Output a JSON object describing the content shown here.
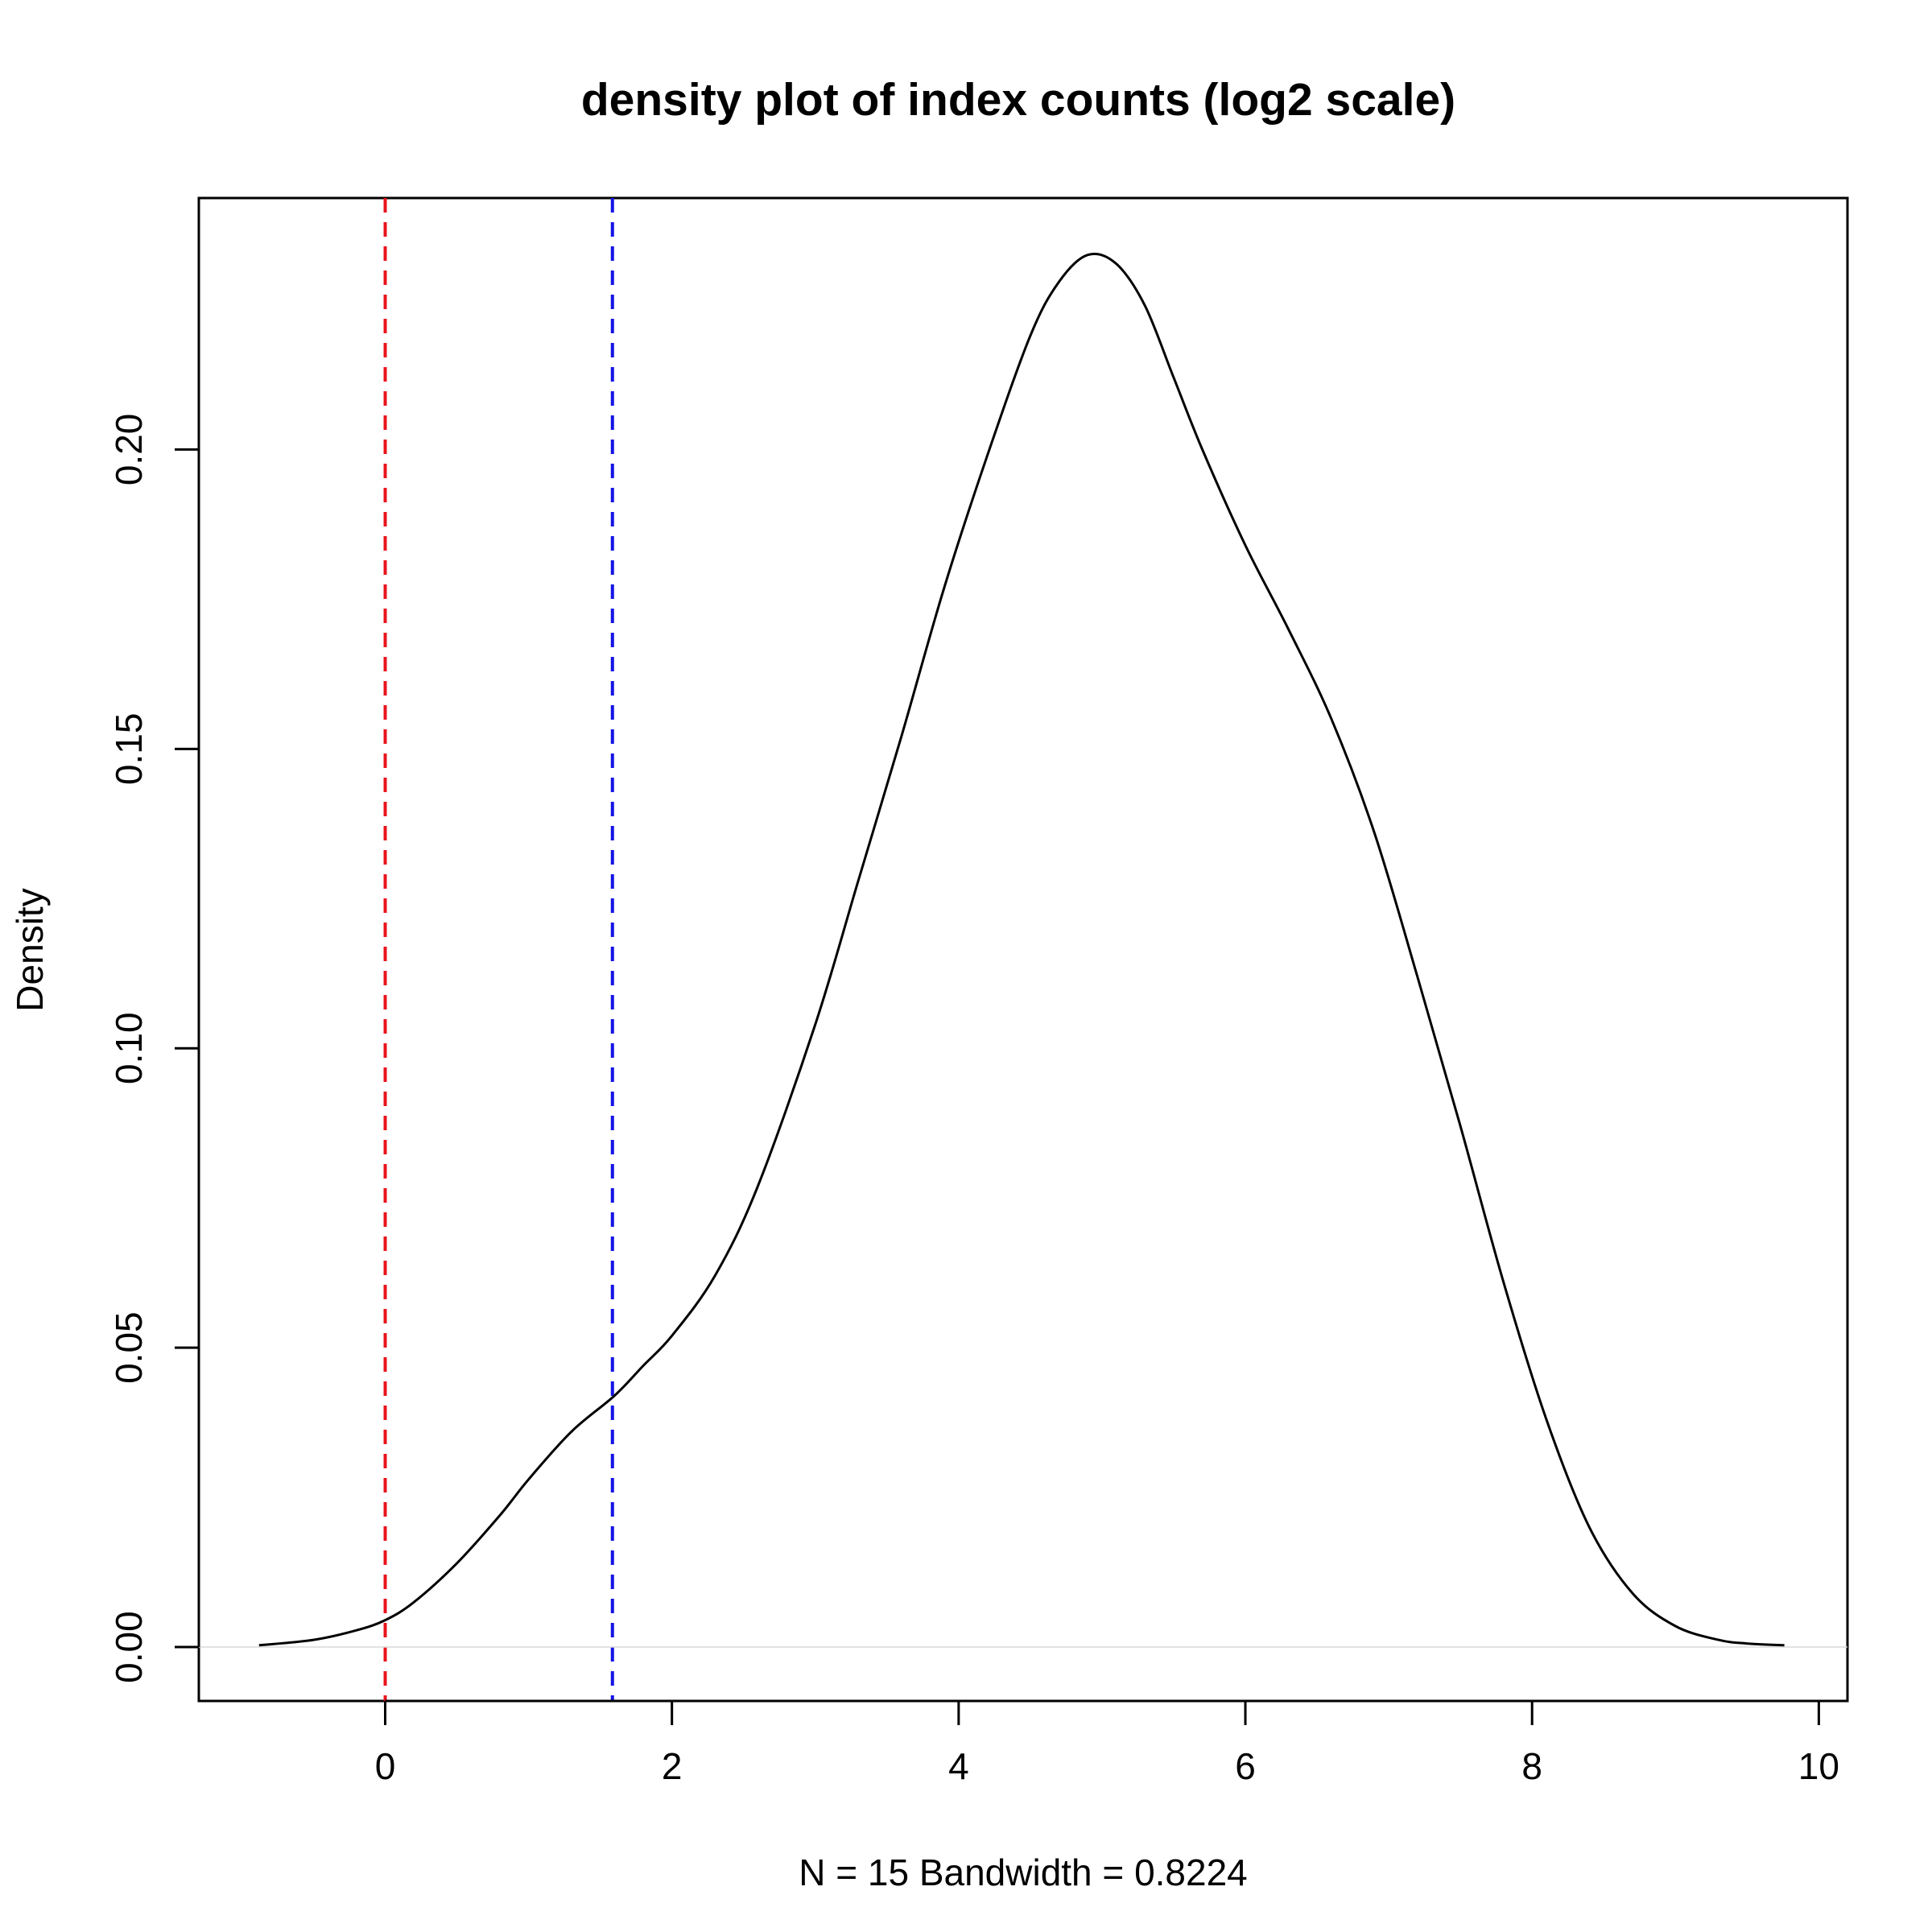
{
  "chart_data": {
    "type": "line",
    "title": "density plot of index counts (log2 scale)",
    "xlabel": "N = 15   Bandwidth = 0.8224",
    "ylabel": "Density",
    "xlim": [
      -1.3,
      10.2
    ],
    "ylim": [
      -0.009,
      0.242
    ],
    "x_ticks": [
      0,
      2,
      4,
      6,
      8,
      10
    ],
    "x_tick_labels": [
      "0",
      "2",
      "4",
      "6",
      "8",
      "10"
    ],
    "y_ticks": [
      0.0,
      0.05,
      0.1,
      0.15,
      0.2
    ],
    "y_tick_labels": [
      "0.00",
      "0.05",
      "0.10",
      "0.15",
      "0.20"
    ],
    "grid": false,
    "legend": "none",
    "reference_lines": [
      {
        "x": 0,
        "color": "#e8141c",
        "style": "dashed"
      },
      {
        "x": 1.585,
        "color": "#1414e6",
        "style": "dashed"
      }
    ],
    "baseline": {
      "y": 0,
      "color": "#d9d9d9"
    },
    "series": [
      {
        "color": "#000000",
        "x": [
          -0.88,
          -0.5,
          -0.2,
          0.0,
          0.2,
          0.5,
          0.8,
          1.0,
          1.3,
          1.6,
          1.8,
          2.0,
          2.3,
          2.6,
          3.0,
          3.3,
          3.6,
          3.9,
          4.2,
          4.5,
          4.7,
          4.9,
          5.1,
          5.3,
          5.5,
          5.7,
          6.0,
          6.3,
          6.6,
          6.9,
          7.2,
          7.5,
          7.8,
          8.1,
          8.4,
          8.7,
          9.0,
          9.3,
          9.5,
          9.76
        ],
        "y": [
          0.0003,
          0.0012,
          0.0028,
          0.0045,
          0.0075,
          0.014,
          0.022,
          0.028,
          0.036,
          0.042,
          0.047,
          0.052,
          0.062,
          0.077,
          0.104,
          0.128,
          0.152,
          0.177,
          0.199,
          0.219,
          0.228,
          0.2325,
          0.231,
          0.224,
          0.212,
          0.2,
          0.184,
          0.17,
          0.155,
          0.136,
          0.112,
          0.087,
          0.061,
          0.038,
          0.02,
          0.009,
          0.0035,
          0.0012,
          0.0006,
          0.0003
        ]
      }
    ]
  }
}
